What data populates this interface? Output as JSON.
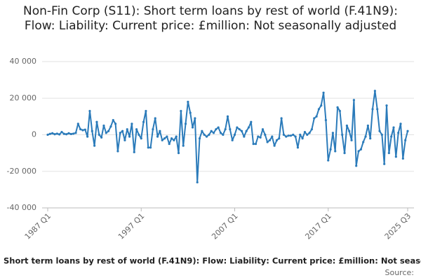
{
  "chart_data": {
    "type": "line",
    "title": "Non-Fin Corp (S11): Short term loans by rest of world (F.41N9): Flow: Liability: Current price: £million: Not seasonally adjusted",
    "source": "Source:",
    "categories": [
      "1987 Q1",
      null,
      null,
      null,
      null,
      null,
      null,
      null,
      null,
      null,
      null,
      null,
      null,
      null,
      null,
      null,
      null,
      null,
      null,
      null,
      null,
      null,
      null,
      null,
      null,
      null,
      null,
      null,
      null,
      null,
      null,
      null,
      null,
      null,
      null,
      null,
      null,
      null,
      null,
      null,
      "1997 Q1",
      null,
      null,
      null,
      null,
      null,
      null,
      null,
      null,
      null,
      null,
      null,
      null,
      null,
      null,
      null,
      null,
      null,
      null,
      null,
      null,
      null,
      null,
      null,
      null,
      null,
      null,
      null,
      null,
      null,
      null,
      null,
      null,
      null,
      null,
      null,
      null,
      null,
      null,
      null,
      "2007 Q1",
      null,
      null,
      null,
      null,
      null,
      null,
      null,
      null,
      null,
      null,
      null,
      null,
      null,
      null,
      null,
      null,
      null,
      null,
      null,
      null,
      null,
      null,
      null,
      null,
      null,
      null,
      null,
      null,
      null,
      null,
      null,
      null,
      null,
      null,
      null,
      null,
      null,
      null,
      null,
      "2017 Q1",
      null,
      null,
      null,
      null,
      null,
      null,
      null,
      null,
      null,
      null,
      null,
      null,
      null,
      null,
      null,
      null,
      null,
      null,
      null,
      null,
      null,
      null,
      null,
      null,
      null,
      null,
      null,
      null,
      null,
      null,
      null,
      null,
      null,
      "2025 Q3"
    ],
    "series": [
      {
        "name": "Short term loans by rest of world (F.41N9): Flow: Liability: Current price: £million: Not seasonally adjusted",
        "color": "#2b7bba",
        "values": [
          0,
          500,
          800,
          300,
          600,
          200,
          1500,
          500,
          300,
          800,
          400,
          600,
          1000,
          6000,
          3000,
          2500,
          2800,
          -1000,
          13000,
          2000,
          -6000,
          7000,
          0,
          -1500,
          5000,
          1000,
          2000,
          4500,
          8000,
          6000,
          -9000,
          1000,
          2000,
          -3000,
          3000,
          -1000,
          6000,
          -9500,
          3000,
          0,
          -2000,
          7000,
          13000,
          -7000,
          -7000,
          3000,
          9000,
          -1000,
          2000,
          -3000,
          -2000,
          -1000,
          -5000,
          -2000,
          -3000,
          -1000,
          -10000,
          13000,
          -6000,
          6000,
          18000,
          12000,
          4000,
          9000,
          -26000,
          -2000,
          2000,
          0,
          -1000,
          0,
          2000,
          1000,
          3000,
          4000,
          1000,
          0,
          3000,
          10000,
          3000,
          -3000,
          0,
          4000,
          3000,
          2000,
          -1000,
          2000,
          4000,
          7000,
          -5000,
          -5000,
          -1000,
          -1500,
          3000,
          0,
          -4000,
          -3000,
          -1000,
          -6000,
          -3000,
          -2000,
          9000,
          0,
          -1000,
          -500,
          -500,
          0,
          -1000,
          -7000,
          0,
          -2000,
          1500,
          0,
          1000,
          3000,
          9000,
          10000,
          14000,
          16000,
          23000,
          8000,
          -14000,
          -8000,
          1000,
          -9000,
          15000,
          13000,
          0,
          -10000,
          5000,
          2000,
          -3000,
          19000,
          -17000,
          -9000,
          -8000,
          -4000,
          -1000,
          5000,
          -2000,
          14000,
          24000,
          14000,
          2000,
          0,
          -16000,
          16000,
          -10000,
          -1000,
          4000,
          -12000,
          1000,
          6000,
          -13000,
          -3000,
          2000
        ]
      }
    ],
    "ylim": [
      -40000,
      40000
    ],
    "yticks": [
      {
        "value": -40000,
        "label": "-40 000"
      },
      {
        "value": -20000,
        "label": "-20 000"
      },
      0,
      {
        "value": 20000,
        "label": "20 000"
      },
      {
        "value": 40000,
        "label": "40 000"
      }
    ],
    "grid": true
  }
}
